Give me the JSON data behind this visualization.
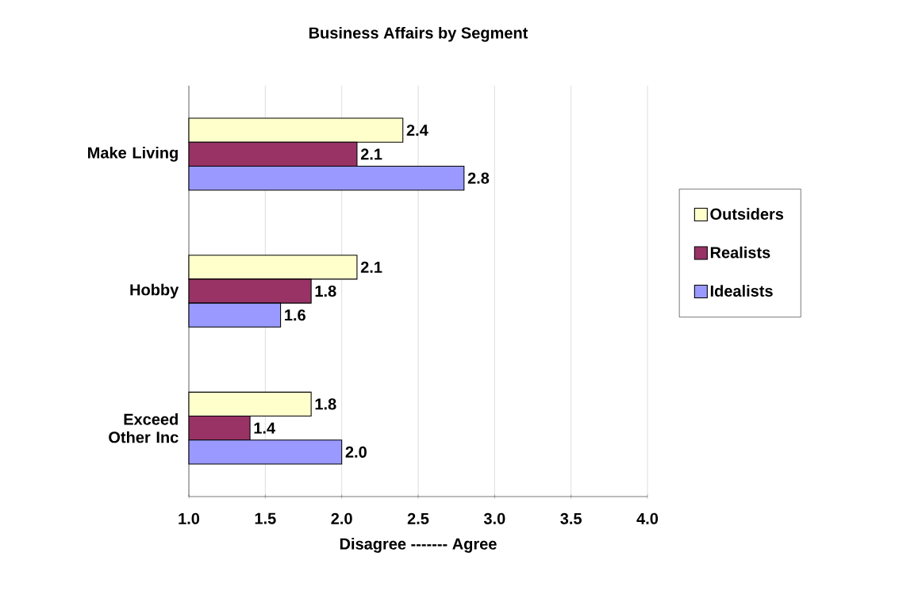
{
  "chart_data": {
    "type": "bar",
    "orientation": "horizontal",
    "title": "Business Affairs by Segment",
    "xlabel": "Disagree          -------          Agree",
    "categories": [
      "Make Living",
      "Hobby",
      "Exceed Other Inc"
    ],
    "series": [
      {
        "name": "Outsiders",
        "color": "#ffffcc",
        "values": [
          2.4,
          2.1,
          1.8
        ],
        "value_labels": [
          "2.4",
          "2.1",
          "1.8"
        ]
      },
      {
        "name": "Realists",
        "color": "#993366",
        "values": [
          2.1,
          1.8,
          1.4
        ],
        "value_labels": [
          "2.1",
          "1.8",
          "1.4"
        ]
      },
      {
        "name": "Idealists",
        "color": "#9999ff",
        "values": [
          2.8,
          1.6,
          2.0
        ],
        "value_labels": [
          "2.8",
          "1.6",
          "2.0"
        ]
      }
    ],
    "xlim": [
      1,
      4
    ],
    "xticks": [
      {
        "value": 1,
        "label": "1.0"
      },
      {
        "value": 1.5,
        "label": "1.5"
      },
      {
        "value": 2,
        "label": "2.0"
      },
      {
        "value": 2.5,
        "label": "2.5"
      },
      {
        "value": 3,
        "label": "3.0"
      },
      {
        "value": 3.5,
        "label": "3.5"
      },
      {
        "value": 4,
        "label": "4.0"
      }
    ],
    "grid": "x",
    "legend": "right"
  }
}
